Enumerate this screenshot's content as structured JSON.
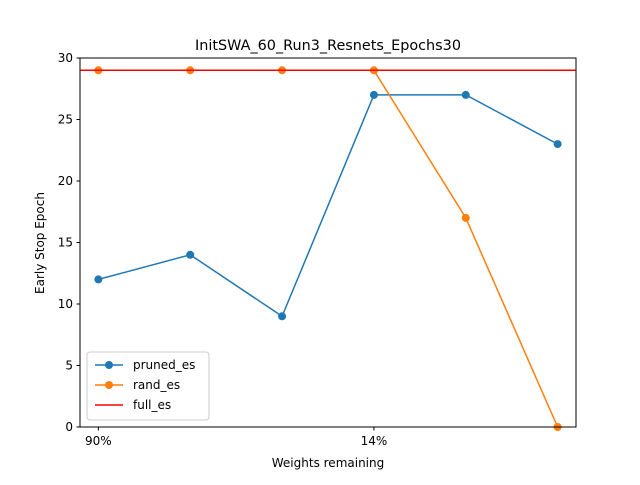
{
  "chart_data": {
    "type": "line",
    "title": "InitSWA_60_Run3_Resnets_Epochs30",
    "xlabel": "Weights remaining",
    "ylabel": "Early Stop Epoch",
    "x": [
      0,
      1,
      2,
      3,
      4,
      5
    ],
    "xlim": [
      -0.2,
      5.2
    ],
    "ylim": [
      0,
      30
    ],
    "x_ticks": [
      {
        "x": 0,
        "label": "90%"
      },
      {
        "x": 3,
        "label": "14%"
      }
    ],
    "y_ticks": [
      0,
      5,
      10,
      15,
      20,
      25,
      30
    ],
    "grid": false,
    "legend_position": "lower-left",
    "series": [
      {
        "name": "pruned_es",
        "color": "#1f77b4",
        "marker": "circle",
        "values": [
          12,
          14,
          9,
          27,
          27,
          23
        ]
      },
      {
        "name": "rand_es",
        "color": "#ff7f0e",
        "marker": "circle",
        "values": [
          29,
          29,
          29,
          29,
          17,
          0
        ]
      }
    ],
    "hlines": [
      {
        "name": "full_es",
        "color": "#ff0000",
        "y": 29
      }
    ]
  }
}
